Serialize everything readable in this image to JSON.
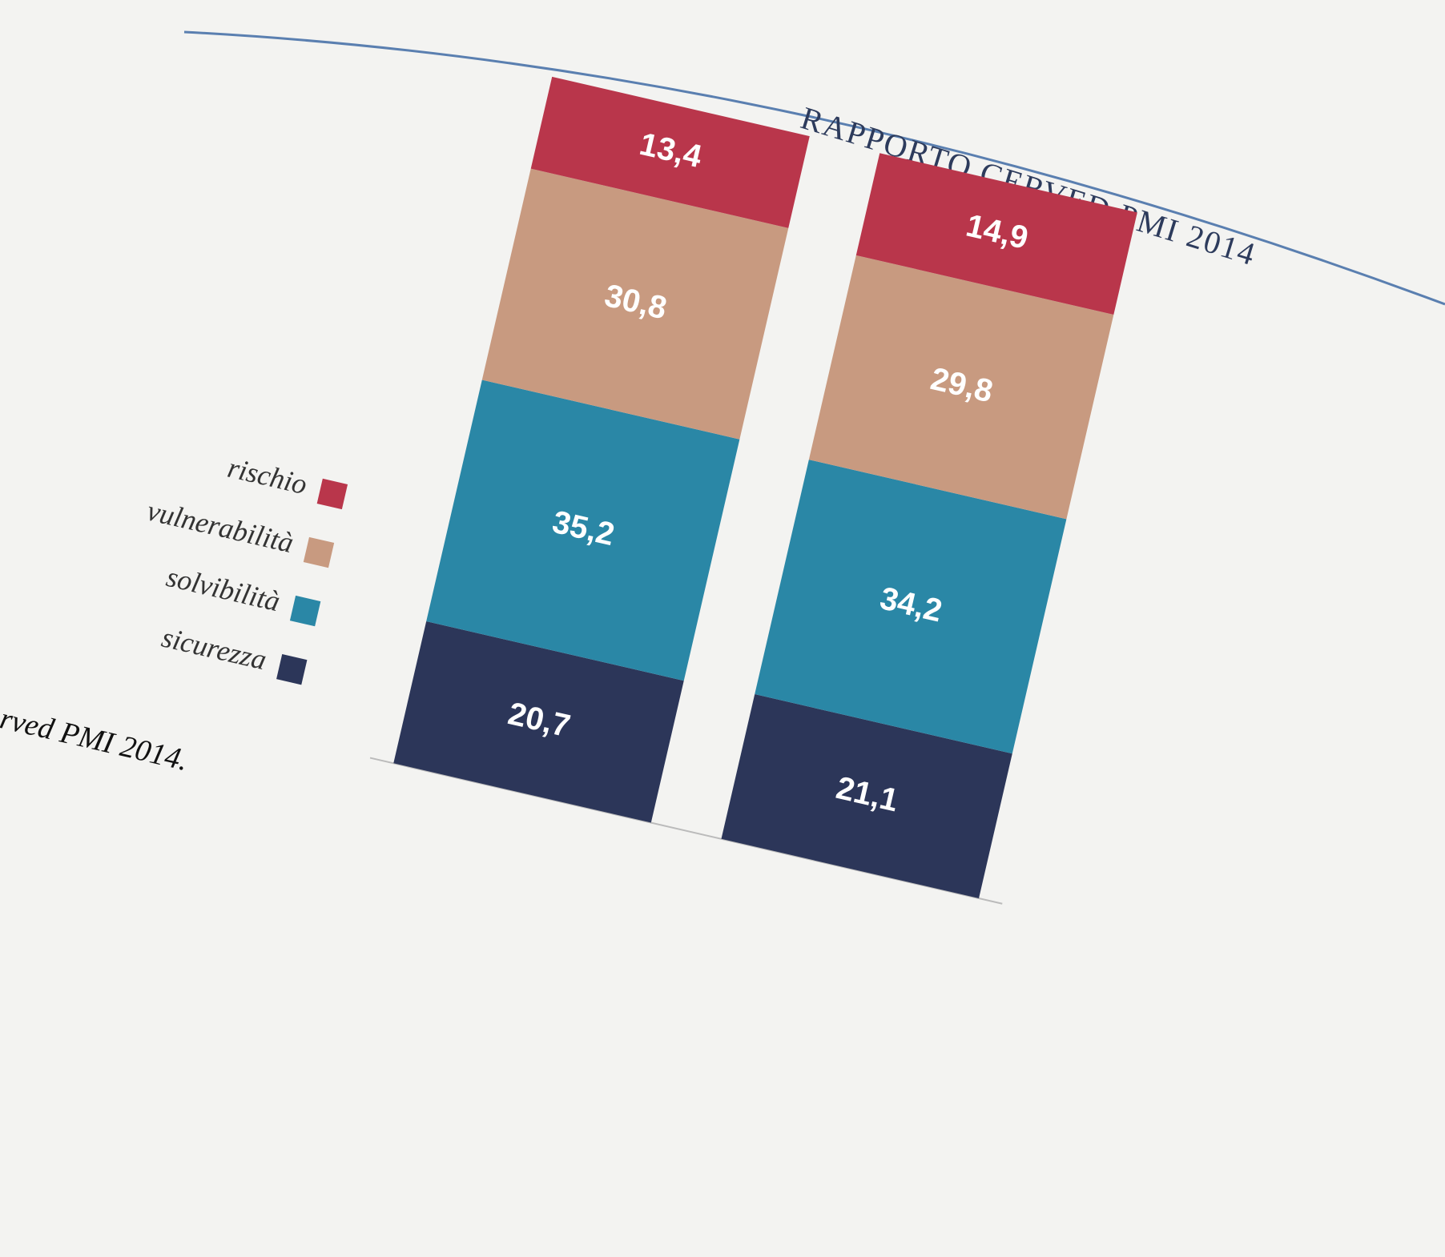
{
  "header": "RAPPORTO CERVED PMI 2014",
  "source_note": "rved PMI 2014.",
  "chart_data": {
    "type": "stacked_bar",
    "categories": [
      null,
      null
    ],
    "series": [
      {
        "name": "rischio",
        "color": "#b9364b",
        "values": [
          13.4,
          14.9
        ],
        "value_labels": [
          "13,4",
          "14,9"
        ]
      },
      {
        "name": "vulnerabilità",
        "color": "#c89a80",
        "values": [
          30.8,
          29.8
        ],
        "value_labels": [
          "30,8",
          "29,8"
        ]
      },
      {
        "name": "solvibilità",
        "color": "#2a87a6",
        "values": [
          35.2,
          34.2
        ],
        "value_labels": [
          "35,2",
          "34,2"
        ]
      },
      {
        "name": "sicurezza",
        "color": "#2c3659",
        "values": [
          20.7,
          21.1
        ],
        "value_labels": [
          "20,7",
          "21,1"
        ]
      }
    ]
  }
}
